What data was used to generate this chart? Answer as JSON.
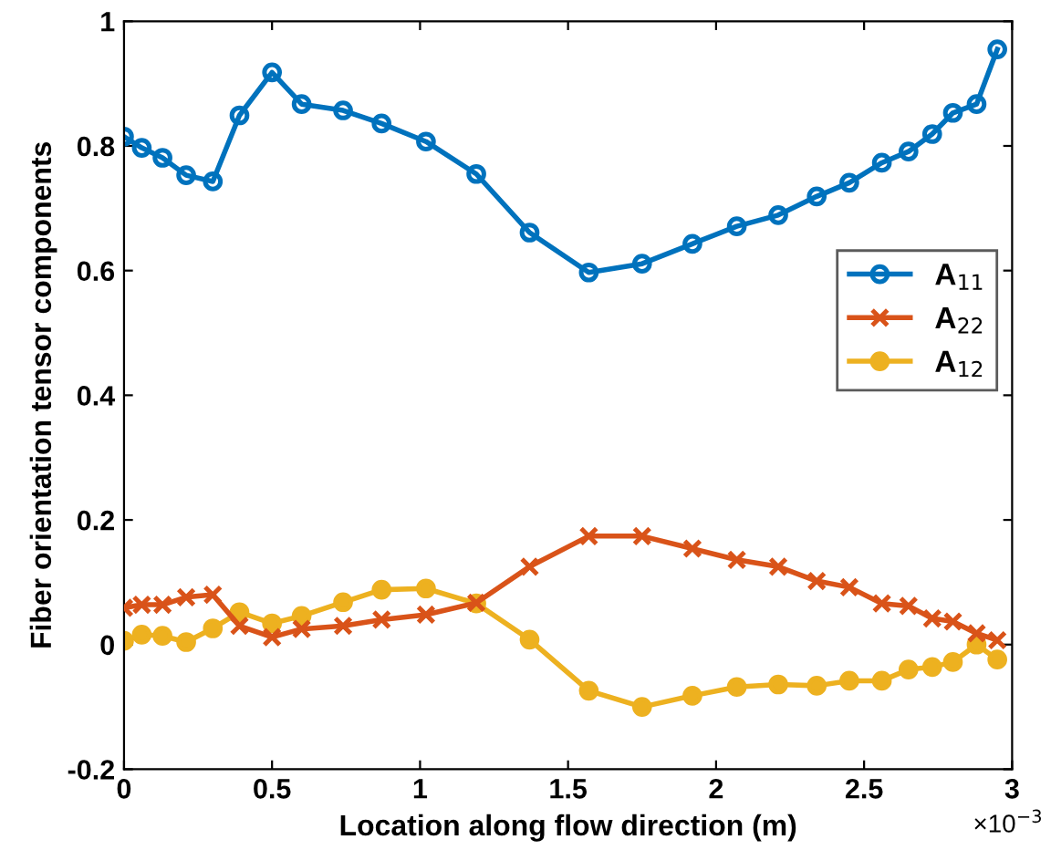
{
  "chart_data": {
    "type": "line",
    "xlabel": "Location along flow direction (m)",
    "ylabel": "Fiber orientation tensor components",
    "annotations": [
      "×10$^{−3}$"
    ],
    "x": [
      0,
      0.06,
      0.13,
      0.21,
      0.3,
      0.39,
      0.5,
      0.6,
      0.74,
      0.87,
      1.02,
      1.19,
      1.37,
      1.57,
      1.75,
      1.92,
      2.07,
      2.21,
      2.34,
      2.45,
      2.56,
      2.65,
      2.73,
      2.8,
      2.88,
      2.95
    ],
    "series": [
      {
        "name": "A$_{11}$",
        "color": "#0072bd",
        "marker": "circle",
        "values": [
          0.815,
          0.797,
          0.781,
          0.753,
          0.743,
          0.849,
          0.918,
          0.867,
          0.857,
          0.836,
          0.807,
          0.755,
          0.661,
          0.597,
          0.611,
          0.643,
          0.671,
          0.689,
          0.719,
          0.741,
          0.773,
          0.791,
          0.819,
          0.853,
          0.867,
          0.955
        ]
      },
      {
        "name": "A$_{22}$",
        "color": "#d95319",
        "marker": "cross",
        "values": [
          0.059,
          0.064,
          0.064,
          0.076,
          0.08,
          0.03,
          0.012,
          0.025,
          0.03,
          0.04,
          0.048,
          0.067,
          0.125,
          0.174,
          0.174,
          0.154,
          0.136,
          0.125,
          0.102,
          0.092,
          0.066,
          0.062,
          0.042,
          0.037,
          0.018,
          0.007
        ]
      },
      {
        "name": "A$_{12}$",
        "color": "#edb120",
        "marker": "circle_filled",
        "values": [
          0.006,
          0.016,
          0.014,
          0.004,
          0.026,
          0.052,
          0.034,
          0.046,
          0.068,
          0.088,
          0.09,
          0.066,
          0.008,
          -0.074,
          -0.1,
          -0.082,
          -0.068,
          -0.064,
          -0.066,
          -0.058,
          -0.058,
          -0.04,
          -0.036,
          -0.028,
          0,
          -0.024
        ]
      }
    ],
    "xlim": [
      0,
      3
    ],
    "xticks": [
      0,
      0.5,
      1,
      1.5,
      2,
      2.5,
      3
    ],
    "ylim": [
      -0.2,
      1
    ],
    "yticks": [
      -0.2,
      0,
      0.2,
      0.4,
      0.6,
      0.8,
      1
    ],
    "legend": "right",
    "grid": false,
    "line_style": "solid"
  }
}
